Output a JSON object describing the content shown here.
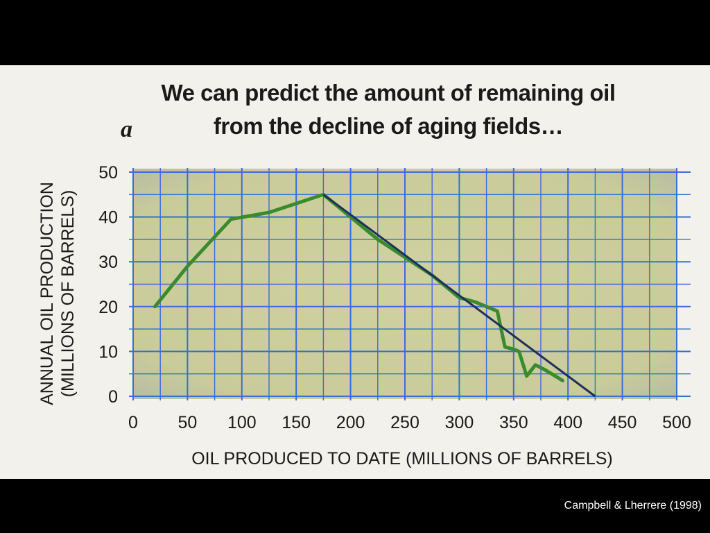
{
  "title_line1": "We can predict the amount of remaining oil",
  "title_line2": "from the decline of aging fields…",
  "panel_letter": "a",
  "credit": "Campbell & Lherrere (1998)",
  "colors": {
    "background": "#000000",
    "plot_fill": "#cfd1a0",
    "grid": "#3f6ad8",
    "production_line": "#3a8a2e",
    "trend_line": "#1f2f5a"
  },
  "chart_data": {
    "type": "line",
    "title": "We can predict the amount of remaining oil from the decline of aging fields…",
    "xlabel": "OIL PRODUCED TO DATE (MILLIONS OF BARRELS)",
    "ylabel_line1": "ANNUAL OIL PRODUCTION",
    "ylabel_line2": "(MILLIONS OF BARRELS)",
    "xlim": [
      0,
      500
    ],
    "ylim": [
      0,
      50
    ],
    "x_ticks": [
      "0",
      "50",
      "100",
      "150",
      "200",
      "250",
      "300",
      "350",
      "400",
      "450",
      "500"
    ],
    "y_ticks": [
      "0",
      "10",
      "20",
      "30",
      "40",
      "50"
    ],
    "grid": true,
    "series": [
      {
        "style": "production",
        "points": [
          [
            20,
            20
          ],
          [
            50,
            29
          ],
          [
            90,
            39.5
          ],
          [
            125,
            41
          ],
          [
            150,
            43
          ],
          [
            175,
            45
          ],
          [
            200,
            40
          ],
          [
            225,
            35
          ],
          [
            250,
            31
          ],
          [
            275,
            27
          ],
          [
            300,
            22
          ],
          [
            315,
            21
          ],
          [
            325,
            20
          ],
          [
            335,
            19
          ],
          [
            338,
            15.5
          ],
          [
            342,
            11
          ],
          [
            350,
            10.5
          ],
          [
            355,
            10
          ],
          [
            362,
            4.5
          ],
          [
            370,
            7
          ],
          [
            378,
            6
          ],
          [
            385,
            5
          ],
          [
            395,
            3.5
          ]
        ]
      },
      {
        "style": "trend",
        "points": [
          [
            175,
            45
          ],
          [
            425,
            0
          ]
        ]
      }
    ]
  }
}
